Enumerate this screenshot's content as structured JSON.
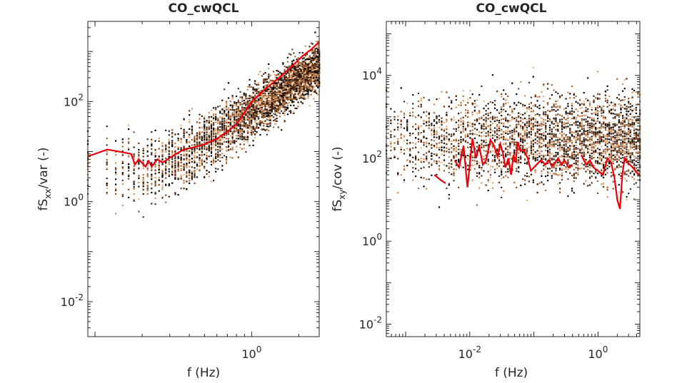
{
  "chart_data": [
    {
      "type": "scatter",
      "title": "CO_cwQCL",
      "xlabel": "f (Hz)",
      "ylabel_parts": {
        "pre": "fS",
        "sub": "xx",
        "post": "/var (-)"
      },
      "xscale": "log",
      "yscale": "log",
      "xlim": [
        0.09,
        2.7
      ],
      "ylim": [
        0.002,
        4000
      ],
      "xticks": [
        {
          "value": 1,
          "base": "10",
          "exp": "0"
        }
      ],
      "yticks": [
        {
          "value": 0.01,
          "base": "10",
          "exp": "-2"
        },
        {
          "value": 1,
          "base": "10",
          "exp": "0"
        },
        {
          "value": 100,
          "base": "10",
          "exp": "2"
        }
      ],
      "grid": false,
      "series": [
        {
          "style": "scatter",
          "x_range": [
            0.09,
            2.7
          ],
          "trend": "increasing with f; median ~4 at 0.15 Hz to ~1500 at 2.7 Hz, spread roughly 3 decades"
        },
        {
          "style": "line",
          "color": "#e8000b",
          "points": [
            [
              0.09,
              8
            ],
            [
              0.12,
              11
            ],
            [
              0.17,
              9
            ],
            [
              0.18,
              5.5
            ],
            [
              0.19,
              7
            ],
            [
              0.21,
              5
            ],
            [
              0.22,
              6.5
            ],
            [
              0.23,
              5
            ],
            [
              0.25,
              7
            ],
            [
              0.27,
              6
            ],
            [
              0.3,
              7.5
            ],
            [
              0.33,
              9
            ],
            [
              0.37,
              11
            ],
            [
              0.42,
              12
            ],
            [
              0.5,
              14
            ],
            [
              0.6,
              18
            ],
            [
              0.7,
              25
            ],
            [
              0.8,
              35
            ],
            [
              0.9,
              60
            ],
            [
              1.0,
              100
            ],
            [
              1.2,
              170
            ],
            [
              1.5,
              300
            ],
            [
              1.8,
              500
            ],
            [
              2.1,
              800
            ],
            [
              2.4,
              1100
            ],
            [
              2.6,
              1400
            ],
            [
              2.7,
              1500
            ]
          ]
        }
      ]
    },
    {
      "type": "scatter",
      "title": "CO_cwQCL",
      "xlabel": "f (Hz)",
      "ylabel_parts": {
        "pre": "fS",
        "sub": "xy",
        "post": "/cov (-)"
      },
      "xscale": "log",
      "yscale": "log",
      "xlim": [
        0.0005,
        4.5
      ],
      "ylim": [
        0.005,
        200000
      ],
      "xticks": [
        {
          "value": 0.01,
          "base": "10",
          "exp": "-2"
        },
        {
          "value": 1,
          "base": "10",
          "exp": "0"
        }
      ],
      "yticks": [
        {
          "value": 0.01,
          "base": "10",
          "exp": "-2"
        },
        {
          "value": 1,
          "base": "10",
          "exp": "0"
        },
        {
          "value": 100,
          "base": "10",
          "exp": "2"
        },
        {
          "value": 10000,
          "base": "10",
          "exp": "4"
        }
      ],
      "grid": false,
      "series": [
        {
          "style": "scatter",
          "x_range": [
            0.0005,
            4.5
          ],
          "trend": "roughly flat; median ~300, spread from ~1 to ~100000"
        },
        {
          "style": "line",
          "color": "#e8000b",
          "points": [
            [
              0.0028,
              40
            ],
            [
              0.0035,
              30
            ],
            [
              0.0042,
              25
            ],
            [
              0.0045,
              null
            ],
            [
              0.0058,
              90
            ],
            [
              0.0068,
              60
            ],
            [
              0.008,
              200
            ],
            [
              0.0092,
              20
            ],
            [
              0.011,
              300
            ],
            [
              0.0125,
              100
            ],
            [
              0.014,
              200
            ],
            [
              0.016,
              70
            ],
            [
              0.018,
              90
            ],
            [
              0.021,
              280
            ],
            [
              0.024,
              200
            ],
            [
              0.027,
              110
            ],
            [
              0.03,
              220
            ],
            [
              0.033,
              130
            ],
            [
              0.036,
              60
            ],
            [
              0.04,
              100
            ],
            [
              0.044,
              40
            ],
            [
              0.048,
              120
            ],
            [
              0.052,
              80
            ],
            [
              0.056,
              250
            ],
            [
              0.062,
              150
            ],
            [
              0.07,
              160
            ],
            [
              0.08,
              100
            ],
            [
              0.09,
              50
            ],
            [
              0.1,
              60
            ],
            [
              0.115,
              75
            ],
            [
              0.13,
              90
            ],
            [
              0.15,
              70
            ],
            [
              0.17,
              90
            ],
            [
              0.19,
              65
            ],
            [
              0.21,
              75
            ],
            [
              0.24,
              100
            ],
            [
              0.27,
              70
            ],
            [
              0.3,
              90
            ],
            [
              0.35,
              60
            ],
            [
              0.4,
              70
            ],
            [
              0.45,
              null
            ],
            [
              0.55,
              120
            ],
            [
              0.65,
              70
            ],
            [
              0.75,
              90
            ],
            [
              0.85,
              60
            ],
            [
              1.0,
              50
            ],
            [
              1.2,
              40
            ],
            [
              1.4,
              100
            ],
            [
              1.6,
              80
            ],
            [
              1.8,
              35
            ],
            [
              2.0,
              10
            ],
            [
              2.2,
              6
            ],
            [
              2.4,
              40
            ],
            [
              2.6,
              100
            ],
            [
              3.0,
              75
            ],
            [
              3.5,
              60
            ],
            [
              4.0,
              45
            ],
            [
              4.5,
              40
            ]
          ]
        }
      ]
    }
  ]
}
